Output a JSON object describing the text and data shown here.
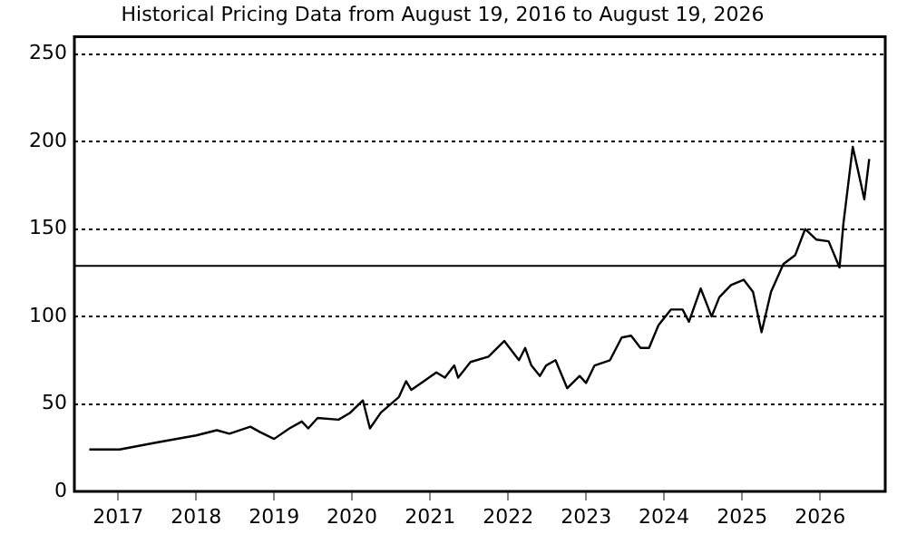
{
  "chart_data": {
    "type": "line",
    "title": "Historical Pricing Data from August 19, 2016 to August 19, 2026",
    "x": [
      "2016-08-19",
      "2017-01-08",
      "2017-07-01",
      "2018-01-01",
      "2018-04-08",
      "2018-06-06",
      "2018-09-12",
      "2018-10-26",
      "2019-01-01",
      "2019-03-14",
      "2019-05-11",
      "2019-06-10",
      "2019-07-24",
      "2019-10-30",
      "2019-12-24",
      "2020-02-21",
      "2020-03-25",
      "2020-05-15",
      "2020-08-08",
      "2020-09-10",
      "2020-10-05",
      "2020-12-02",
      "2021-01-30",
      "2021-03-11",
      "2021-04-24",
      "2021-05-12",
      "2021-07-09",
      "2021-10-01",
      "2021-12-14",
      "2022-01-08",
      "2022-02-21",
      "2022-03-22",
      "2022-04-20",
      "2022-05-30",
      "2022-06-28",
      "2022-08-11",
      "2022-10-05",
      "2022-12-02",
      "2023-01-01",
      "2023-02-10",
      "2023-04-23",
      "2023-06-17",
      "2023-07-31",
      "2023-09-13",
      "2023-10-23",
      "2023-12-06",
      "2024-02-03",
      "2024-03-28",
      "2024-04-27",
      "2024-06-21",
      "2024-08-11",
      "2024-09-16",
      "2024-11-10",
      "2025-01-08",
      "2025-02-21",
      "2025-04-02",
      "2025-05-16",
      "2025-07-13",
      "2025-09-06",
      "2025-10-23",
      "2025-12-14",
      "2026-02-10",
      "2026-04-02",
      "2026-04-20",
      "2026-06-03",
      "2026-07-02",
      "2026-07-27",
      "2026-08-19"
    ],
    "series": [
      {
        "color": "#000000",
        "values": [
          24,
          24,
          28,
          32,
          35,
          33,
          37,
          34,
          30,
          36,
          40,
          36,
          42,
          41,
          45,
          52,
          36,
          45,
          54,
          63,
          58,
          63,
          68,
          65,
          72,
          65,
          74,
          77,
          86,
          82,
          75,
          82,
          72,
          66,
          72,
          75,
          59,
          66,
          62,
          72,
          75,
          88,
          89,
          82,
          82,
          95,
          104,
          104,
          97,
          116,
          100,
          111,
          118,
          121,
          114,
          91,
          114,
          130,
          135,
          150,
          144,
          143,
          128,
          153,
          197,
          181,
          167,
          190
        ]
      }
    ],
    "xlim": [
      "2016-06-10",
      "2026-11-02"
    ],
    "xticks": [
      {
        "value": "2017-01-01",
        "label": "2017"
      },
      {
        "value": "2018-01-01",
        "label": "2018"
      },
      {
        "value": "2019-01-01",
        "label": "2019"
      },
      {
        "value": "2020-01-01",
        "label": "2020"
      },
      {
        "value": "2021-01-01",
        "label": "2021"
      },
      {
        "value": "2022-01-01",
        "label": "2022"
      },
      {
        "value": "2023-01-01",
        "label": "2023"
      },
      {
        "value": "2024-01-01",
        "label": "2024"
      },
      {
        "value": "2025-01-01",
        "label": "2025"
      },
      {
        "value": "2026-01-01",
        "label": "2026"
      }
    ],
    "ylim": [
      0,
      260
    ],
    "yticks": [
      0,
      50,
      100,
      150,
      200,
      250
    ],
    "grid": "y",
    "legend": false,
    "marker": "none",
    "line_style": "solid",
    "ref_lines": [
      {
        "axis": "y",
        "value": 129,
        "color": "#000000",
        "line_style": "solid"
      }
    ]
  }
}
